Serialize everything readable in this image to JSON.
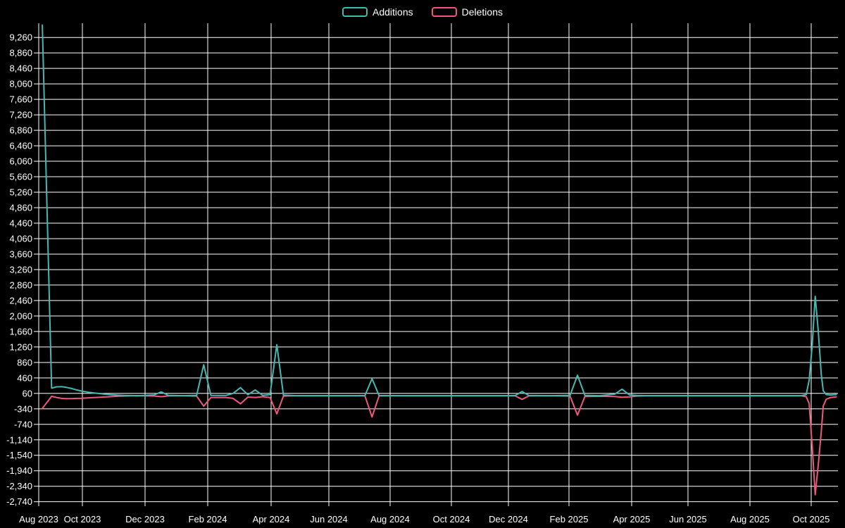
{
  "page": {
    "background": "#000000",
    "text_color": "#ffffff",
    "grid_color": "#ffffff"
  },
  "legend": {
    "items": [
      {
        "label": "Additions",
        "color": "#46b8b2"
      },
      {
        "label": "Deletions",
        "color": "#ee587f"
      }
    ]
  },
  "y_axis": {
    "max": 9260,
    "min": -2740,
    "step": 400,
    "tick_labels": [
      "9,260",
      "8,860",
      "8,460",
      "8,060",
      "7,660",
      "7,260",
      "6,860",
      "6,460",
      "6,060",
      "5,660",
      "5,260",
      "4,860",
      "4,460",
      "4,060",
      "3,660",
      "3,260",
      "2,860",
      "2,460",
      "2,060",
      "1,660",
      "1,260",
      "860",
      "460",
      "60",
      "-340",
      "-740",
      "-1,140",
      "-1,540",
      "-1,940",
      "-2,340",
      "-2,740"
    ]
  },
  "x_axis": {
    "tick_labels": [
      "Aug 2023",
      "Oct 2023",
      "Dec 2023",
      "Feb 2024",
      "Apr 2024",
      "Jun 2024",
      "Aug 2024",
      "Oct 2024",
      "Dec 2024",
      "Feb 2025",
      "Apr 2025",
      "Jun 2025",
      "Aug 2025",
      "Oct 2025"
    ]
  },
  "chart_data": {
    "type": "line",
    "title": "",
    "xlabel": "",
    "ylabel": "",
    "legend_position": "top",
    "grid": true,
    "background": "#000000",
    "ylim": [
      -2740,
      9260
    ],
    "x": [
      "2023-08-06",
      "2023-08-19",
      "2023-08-26",
      "2023-09-02",
      "2023-09-09",
      "2023-09-16",
      "2023-09-23",
      "2023-09-30",
      "2023-10-07",
      "2023-10-14",
      "2023-10-21",
      "2023-10-28",
      "2023-11-04",
      "2023-11-11",
      "2023-11-18",
      "2023-11-25",
      "2023-12-10",
      "2023-12-17",
      "2023-12-24",
      "2024-01-07",
      "2024-01-21",
      "2024-01-28",
      "2024-02-04",
      "2024-02-11",
      "2024-02-18",
      "2024-02-25",
      "2024-03-03",
      "2024-03-10",
      "2024-03-17",
      "2024-03-24",
      "2024-03-31",
      "2024-04-07",
      "2024-04-14",
      "2024-04-28",
      "2024-05-26",
      "2024-06-23",
      "2024-07-07",
      "2024-07-14",
      "2024-07-21",
      "2024-08-11",
      "2024-09-08",
      "2024-10-06",
      "2024-11-03",
      "2024-12-01",
      "2024-12-08",
      "2024-12-15",
      "2024-12-22",
      "2025-01-12",
      "2025-02-02",
      "2025-02-09",
      "2025-02-16",
      "2025-03-02",
      "2025-03-16",
      "2025-03-23",
      "2025-03-30",
      "2025-04-06",
      "2025-04-20",
      "2025-05-18",
      "2025-06-15",
      "2025-07-13",
      "2025-08-10",
      "2025-09-07",
      "2025-09-21",
      "2025-09-26",
      "2025-09-29",
      "2025-10-02",
      "2025-10-05",
      "2025-10-08",
      "2025-10-11",
      "2025-10-13",
      "2025-10-16",
      "2025-10-20",
      "2025-10-26"
    ],
    "series": [
      {
        "name": "Additions",
        "color": "#46b8b2",
        "values": [
          9580,
          195,
          230,
          235,
          215,
          185,
          150,
          120,
          90,
          65,
          45,
          28,
          15,
          8,
          3,
          0,
          20,
          100,
          10,
          0,
          10,
          800,
          10,
          5,
          5,
          60,
          210,
          25,
          150,
          10,
          30,
          1320,
          15,
          0,
          0,
          0,
          5,
          440,
          5,
          0,
          0,
          0,
          0,
          0,
          5,
          110,
          5,
          0,
          10,
          530,
          10,
          0,
          40,
          170,
          20,
          5,
          0,
          0,
          0,
          0,
          0,
          0,
          0,
          30,
          400,
          1300,
          2570,
          1680,
          550,
          130,
          30,
          20,
          30
        ]
      },
      {
        "name": "Deletions",
        "color": "#ee587f",
        "values": [
          -330,
          -15,
          -45,
          -70,
          -75,
          -75,
          -70,
          -65,
          -55,
          -45,
          -35,
          -25,
          -15,
          -8,
          -3,
          0,
          -8,
          -25,
          -5,
          0,
          -10,
          -270,
          -45,
          -45,
          -45,
          -70,
          -210,
          -35,
          -45,
          -25,
          -45,
          -470,
          -10,
          0,
          0,
          0,
          -5,
          -550,
          -5,
          0,
          0,
          0,
          0,
          0,
          -5,
          -95,
          -5,
          0,
          -10,
          -500,
          -20,
          -15,
          -20,
          -40,
          -30,
          -10,
          0,
          0,
          0,
          0,
          0,
          0,
          0,
          -25,
          -200,
          -1300,
          -2560,
          -1790,
          -930,
          -265,
          -90,
          -50,
          -30
        ]
      }
    ]
  }
}
